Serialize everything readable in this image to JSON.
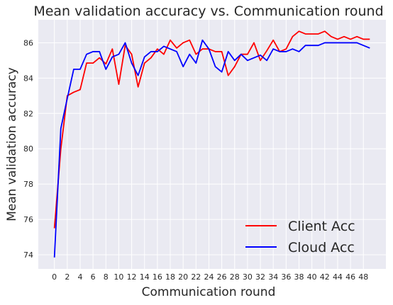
{
  "chart_data": {
    "type": "line",
    "title": "Mean validation accuracy vs. Communication round",
    "xlabel": "Communication round",
    "ylabel": "Mean validation accuracy",
    "xlim": [
      -2.5,
      51.5
    ],
    "ylim": [
      73.2,
      87.3
    ],
    "xticks": [
      0,
      2,
      4,
      6,
      8,
      10,
      12,
      14,
      16,
      18,
      20,
      22,
      24,
      26,
      28,
      30,
      32,
      34,
      36,
      38,
      40,
      42,
      44,
      46,
      48
    ],
    "yticks": [
      74,
      76,
      78,
      80,
      82,
      84,
      86
    ],
    "grid": true,
    "legend_position": "bottom-right",
    "x": [
      0,
      1,
      2,
      3,
      4,
      5,
      6,
      7,
      8,
      9,
      10,
      11,
      12,
      13,
      14,
      15,
      16,
      17,
      18,
      19,
      20,
      21,
      22,
      23,
      24,
      25,
      26,
      27,
      28,
      29,
      30,
      31,
      32,
      33,
      34,
      35,
      36,
      37,
      38,
      39,
      40,
      41,
      42,
      43,
      44,
      45,
      46,
      47,
      48,
      49
    ],
    "series": [
      {
        "name": "Client Acc",
        "color": "#ff0000",
        "values": [
          75.5,
          80.0,
          83.0,
          83.2,
          83.35,
          84.85,
          84.85,
          85.15,
          84.8,
          85.65,
          83.65,
          85.85,
          85.35,
          83.5,
          84.85,
          85.15,
          85.65,
          85.35,
          86.15,
          85.7,
          86.0,
          86.15,
          85.35,
          85.65,
          85.65,
          85.5,
          85.5,
          84.15,
          84.65,
          85.35,
          85.35,
          86.0,
          85.0,
          85.55,
          86.15,
          85.5,
          85.65,
          86.35,
          86.65,
          86.5,
          86.5,
          86.5,
          86.65,
          86.35,
          86.2,
          86.35,
          86.2,
          86.35,
          86.2,
          86.2
        ]
      },
      {
        "name": "Cloud Acc",
        "color": "#0000ff",
        "values": [
          73.85,
          81.15,
          82.85,
          84.5,
          84.5,
          85.35,
          85.5,
          85.5,
          84.5,
          85.2,
          85.35,
          86.0,
          84.85,
          84.15,
          85.2,
          85.5,
          85.5,
          85.8,
          85.65,
          85.5,
          84.65,
          85.35,
          84.85,
          86.15,
          85.65,
          84.65,
          84.35,
          85.5,
          85.0,
          85.35,
          85.0,
          85.15,
          85.3,
          85.0,
          85.65,
          85.5,
          85.5,
          85.65,
          85.5,
          85.85,
          85.85,
          85.85,
          86.0,
          86.0,
          86.0,
          86.0,
          86.0,
          86.0,
          85.85,
          85.7
        ]
      }
    ]
  }
}
